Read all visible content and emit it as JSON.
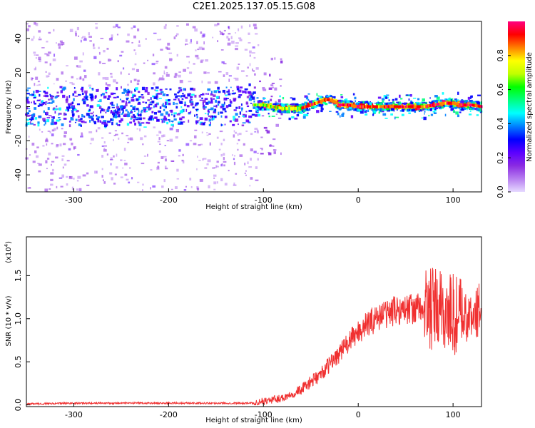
{
  "title": "C2E1.2025.137.05.15.G08",
  "chart_data": [
    {
      "type": "heatmap",
      "name": "spectrogram",
      "xlabel": "Height of straight line (km)",
      "ylabel": "Frequency (Hz)",
      "xlim": [
        -350,
        130
      ],
      "ylim": [
        -50,
        50
      ],
      "xticks": [
        -300,
        -200,
        -100,
        0,
        100
      ],
      "yticks": [
        -40,
        -20,
        0,
        20,
        40
      ],
      "colorbar": {
        "label": "Normalized spectral amplitude",
        "range": [
          0.0,
          1.0
        ],
        "ticks": [
          0.0,
          0.2,
          0.4,
          0.6,
          0.8
        ],
        "colors": [
          "#e6d9ff",
          "#b77ef0",
          "#8a2be2",
          "#5b00ff",
          "#0000ff",
          "#0080ff",
          "#00ffff",
          "#00ff80",
          "#00ff00",
          "#c0ff00",
          "#ffff00",
          "#ff8000",
          "#ff0000",
          "#ff0080"
        ]
      },
      "ridge": {
        "x": [
          -350,
          -300,
          -250,
          -200,
          -150,
          -110,
          -100,
          -80,
          -60,
          -50,
          -40,
          -35,
          -30,
          -25,
          -20,
          -10,
          0,
          20,
          40,
          60,
          70,
          80,
          90,
          100,
          110,
          120,
          130
        ],
        "freq": [
          0,
          0,
          0,
          0,
          0,
          1,
          1,
          -1,
          -1,
          1,
          3,
          4,
          4,
          3,
          1,
          1,
          0,
          0,
          0,
          0,
          0,
          1,
          2,
          2,
          1,
          1,
          0
        ]
      }
    },
    {
      "type": "line",
      "name": "snr",
      "xlabel": "Height of straight line (km)",
      "ylabel": "SNR (10 * v/v)",
      "scale_label": "(x10",
      "scale_exp": "4",
      "xlim": [
        -350,
        130
      ],
      "ylim": [
        -0.02,
        1.95
      ],
      "xticks": [
        -300,
        -200,
        -100,
        0,
        100
      ],
      "yticks": [
        "0.0",
        "0.5",
        "1.0",
        "1.5"
      ],
      "ytick_values": [
        0.0,
        0.5,
        1.0,
        1.5
      ],
      "color": "#f03030",
      "trend": {
        "x": [
          -350,
          -300,
          -250,
          -200,
          -150,
          -110,
          -100,
          -80,
          -60,
          -40,
          -20,
          0,
          20,
          40,
          60,
          80,
          90,
          100,
          110,
          120,
          130
        ],
        "y": [
          0.01,
          0.02,
          0.02,
          0.02,
          0.02,
          0.02,
          0.04,
          0.08,
          0.18,
          0.35,
          0.6,
          0.85,
          1.02,
          1.1,
          1.12,
          1.1,
          1.08,
          1.05,
          1.0,
          1.0,
          1.15
        ]
      }
    }
  ]
}
